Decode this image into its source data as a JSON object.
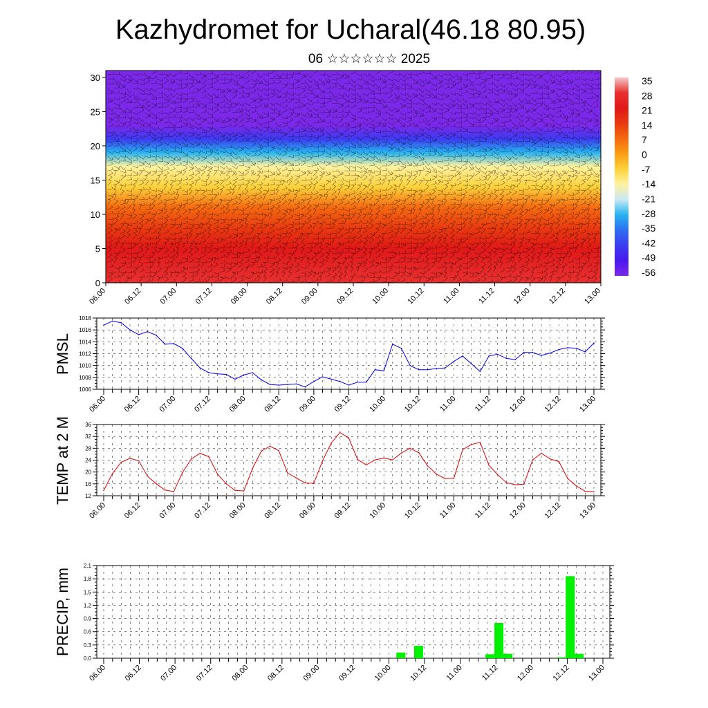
{
  "title": "Kazhydromet for Ucharal(46.18 80.95)",
  "subtitle": "06 ☆☆☆☆☆☆ 2025",
  "chart_data": [
    {
      "type": "heatmap",
      "name": "cross-section",
      "y_ticks": [
        "0",
        "5",
        "10",
        "15",
        "20",
        "25",
        "30"
      ],
      "ylim": [
        0,
        31
      ],
      "x_ticks": [
        "06.00",
        "06.12",
        "07.00",
        "07.12",
        "08.00",
        "08.12",
        "09.00",
        "09.12",
        "10.00",
        "10.12",
        "11.00",
        "11.12",
        "12.00",
        "12.12",
        "13.00"
      ],
      "colorbar_labels": [
        "35",
        "28",
        "21",
        "14",
        "7",
        "0",
        "-7",
        "-14",
        "-21",
        "-28",
        "-35",
        "-42",
        "-49",
        "-56"
      ],
      "colorbar_colors": [
        "#f4c8c8",
        "#e83030",
        "#e01818",
        "#e83a10",
        "#f46a10",
        "#fa9e14",
        "#fcd23c",
        "#fff2a0",
        "#c8e8f4",
        "#28b4f0",
        "#2c6ef0",
        "#3c3cf0",
        "#4818ee",
        "#7c28e8"
      ],
      "profile": [
        {
          "h": 0,
          "t": 30
        },
        {
          "h": 5,
          "t": 24
        },
        {
          "h": 8,
          "t": 16
        },
        {
          "h": 11,
          "t": 6
        },
        {
          "h": 14,
          "t": -4
        },
        {
          "h": 17,
          "t": -16
        },
        {
          "h": 19,
          "t": -30
        },
        {
          "h": 21,
          "t": -44
        },
        {
          "h": 23,
          "t": -54
        },
        {
          "h": 31,
          "t": -58
        }
      ]
    },
    {
      "type": "line",
      "ylabel": "PMSL",
      "color": "#0000ee",
      "ylim": [
        1006,
        1018
      ],
      "y_ticks": [
        "1006",
        "1008",
        "1010",
        "1012",
        "1014",
        "1016",
        "1018"
      ],
      "x_ticks": [
        "06.00",
        "06.12",
        "07.00",
        "07.12",
        "08.00",
        "08.12",
        "09.00",
        "09.12",
        "10.00",
        "10.12",
        "11.00",
        "11.12",
        "12.00",
        "12.12",
        "13.00"
      ],
      "x": [
        0,
        3,
        6,
        9,
        12,
        15,
        18,
        21,
        24,
        27,
        30,
        33,
        36,
        39,
        42,
        45,
        48,
        51,
        54,
        57,
        60,
        63,
        66,
        69,
        72,
        75,
        78,
        81,
        84,
        87,
        90,
        93,
        96,
        99,
        102,
        105,
        108,
        111,
        114,
        117,
        120,
        123,
        126,
        129,
        132,
        135,
        138,
        141,
        144,
        147,
        150,
        153,
        156,
        159,
        162,
        165,
        168
      ],
      "values": [
        1016.8,
        1017.5,
        1017.2,
        1016.0,
        1015.2,
        1015.7,
        1015.1,
        1013.6,
        1013.7,
        1012.9,
        1011.2,
        1009.6,
        1008.8,
        1008.6,
        1008.5,
        1007.7,
        1008.4,
        1008.8,
        1007.6,
        1006.8,
        1006.7,
        1006.8,
        1006.9,
        1006.4,
        1007.3,
        1008.1,
        1007.7,
        1007.3,
        1006.7,
        1007.2,
        1007.2,
        1009.3,
        1009.1,
        1013.6,
        1012.9,
        1010.0,
        1009.3,
        1009.3,
        1009.5,
        1009.6,
        1010.7,
        1011.6,
        1010.3,
        1009.0,
        1011.6,
        1011.9,
        1011.2,
        1011.0,
        1012.2,
        1012.2,
        1011.7,
        1012.1,
        1012.7,
        1013.0,
        1012.9,
        1012.3,
        1013.8
      ]
    },
    {
      "type": "line",
      "ylabel": "TEMP at 2 M",
      "color": "#e00000",
      "ylim": [
        12,
        36
      ],
      "y_ticks": [
        "12",
        "16",
        "20",
        "24",
        "28",
        "32",
        "36"
      ],
      "x_ticks": [
        "06.00",
        "06.12",
        "07.00",
        "07.12",
        "08.00",
        "08.12",
        "09.00",
        "09.12",
        "10.00",
        "10.12",
        "11.00",
        "11.12",
        "12.00",
        "12.12",
        "13.00"
      ],
      "x": [
        0,
        3,
        6,
        9,
        12,
        15,
        18,
        21,
        24,
        27,
        30,
        33,
        36,
        39,
        42,
        45,
        48,
        51,
        54,
        57,
        60,
        63,
        66,
        69,
        72,
        75,
        78,
        81,
        84,
        87,
        90,
        93,
        96,
        99,
        102,
        105,
        108,
        111,
        114,
        117,
        120,
        123,
        126,
        129,
        132,
        135,
        138,
        141,
        144,
        147,
        150,
        153,
        156,
        159,
        162,
        165,
        168
      ],
      "values": [
        13.8,
        19.5,
        23.3,
        24.6,
        23.8,
        18.6,
        16.0,
        13.9,
        13.4,
        19.8,
        24.4,
        26.3,
        25.2,
        19.3,
        16.0,
        13.8,
        13.6,
        21.2,
        27.0,
        28.7,
        27.2,
        19.7,
        18.0,
        16.3,
        16.2,
        23.8,
        29.8,
        33.3,
        31.4,
        24.2,
        22.4,
        24.1,
        24.7,
        24.1,
        26.4,
        28.0,
        26.5,
        22.1,
        19.3,
        17.8,
        17.9,
        27.5,
        29.3,
        30.0,
        22.3,
        19.1,
        16.4,
        15.7,
        15.9,
        24.1,
        26.3,
        24.4,
        23.5,
        17.8,
        15.3,
        13.5,
        13.4
      ]
    },
    {
      "type": "bar",
      "ylabel": "PRECIP, mm",
      "color": "#00f000",
      "ylim": [
        0,
        2.1
      ],
      "y_ticks": [
        "0.0",
        "0.3",
        "0.6",
        "0.9",
        "1.2",
        "1.5",
        "1.8",
        "2.1"
      ],
      "x_ticks": [
        "06.00",
        "06.12",
        "07.00",
        "07.12",
        "08.00",
        "08.12",
        "09.00",
        "09.12",
        "10.00",
        "10.12",
        "11.00",
        "11.12",
        "12.00",
        "12.12",
        "13.00"
      ],
      "x": [
        100,
        106,
        130,
        133,
        136,
        154,
        157,
        160
      ],
      "values": [
        0.13,
        0.28,
        0.09,
        0.8,
        0.1,
        0.02,
        1.86,
        0.1
      ]
    }
  ]
}
